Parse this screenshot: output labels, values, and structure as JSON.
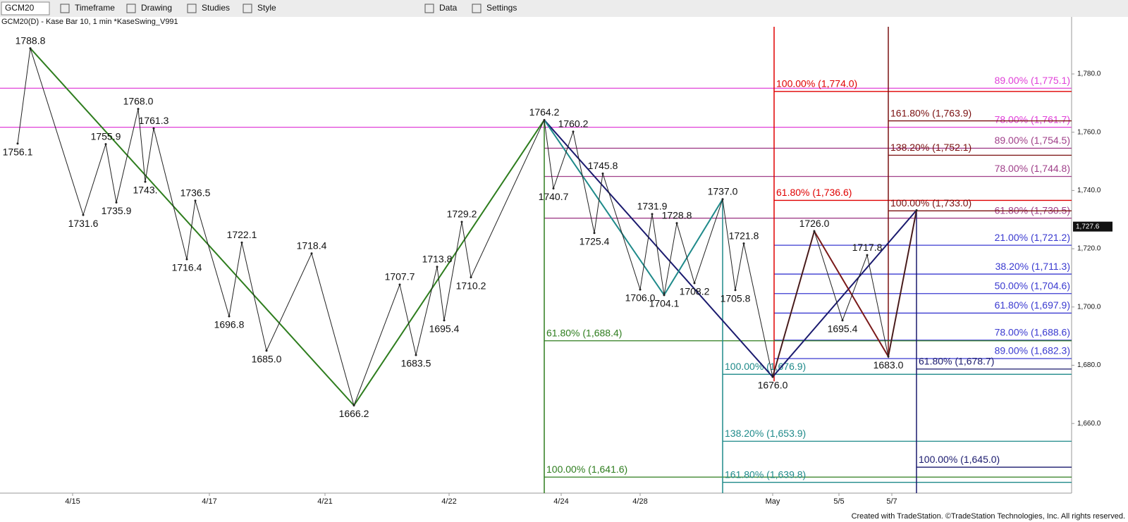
{
  "toolbar": {
    "symbol": "GCM20",
    "items": [
      "Timeframe",
      "Drawing",
      "Studies",
      "Style",
      "Data",
      "Settings"
    ]
  },
  "header": "GCM20(D) - Kase Bar 10, 1 min  *KaseSwing_V991",
  "footer": "Created with TradeStation. ©TradeStation Technologies, Inc. All rights reserved.",
  "chart_data": {
    "type": "line",
    "xlim": [
      0,
      760
    ],
    "ylim": [
      1636.1,
      1796.2
    ],
    "yticks": [
      {
        "value": 1780,
        "label": "1,780.0"
      },
      {
        "value": 1760,
        "label": "1,760.0"
      },
      {
        "value": 1740,
        "label": "1,740.0"
      },
      {
        "value": 1720,
        "label": "1,720.0"
      },
      {
        "value": 1700,
        "label": "1,700.0"
      },
      {
        "value": 1680,
        "label": "1,680.0"
      },
      {
        "value": 1660,
        "label": "1,660.0"
      }
    ],
    "xticks": [
      {
        "value": 51.5,
        "label": "4/15"
      },
      {
        "value": 148.5,
        "label": "4/17"
      },
      {
        "value": 230.5,
        "label": "4/21"
      },
      {
        "value": 318.5,
        "label": "4/22"
      },
      {
        "value": 398,
        "label": "4/24"
      },
      {
        "value": 454,
        "label": "4/28"
      },
      {
        "value": 548,
        "label": "May"
      },
      {
        "value": 595,
        "label": "5/5"
      },
      {
        "value": 632.5,
        "label": "5/7"
      }
    ],
    "last_price": {
      "value": 1727.6,
      "label": "1,727.6"
    },
    "pivots": {
      "color": "#222222",
      "x": [
        12.5,
        21.5,
        59,
        75,
        82.5,
        98,
        103,
        109,
        132.5,
        138.5,
        162.5,
        171.5,
        189,
        221,
        251,
        283.5,
        295,
        310,
        315,
        327.5,
        334,
        386,
        392.5,
        406.5,
        421.5,
        427.5,
        454,
        462.5,
        471,
        480,
        492.5,
        512.5,
        521.5,
        527.5,
        548,
        577.5,
        597.5,
        615,
        630,
        650
      ],
      "values": [
        1756.1,
        1788.8,
        1731.6,
        1755.9,
        1735.9,
        1768.0,
        1743,
        1761.3,
        1716.4,
        1736.5,
        1696.8,
        1722.1,
        1685.0,
        1718.4,
        1666.2,
        1707.7,
        1683.5,
        1713.8,
        1695.4,
        1729.2,
        1710.2,
        1764.2,
        1740.7,
        1760.2,
        1725.4,
        1745.8,
        1706.0,
        1731.9,
        1704.1,
        1728.8,
        1708.2,
        1737.0,
        1705.8,
        1721.8,
        1676.0,
        1726.0,
        1695.4,
        1717.8,
        1683.0,
        1733.2
      ],
      "value_labels": [
        "1756.1",
        "1788.8",
        "1731.6",
        "1755.9",
        "1735.9",
        "1768.0",
        "1743.",
        "1761.3",
        "1716.4",
        "1736.5",
        "1696.8",
        "1722.1",
        "1685.0",
        "1718.4",
        "1666.2",
        "1707.7",
        "1683.5",
        "1713.8",
        "1695.4",
        "1729.2",
        "1710.2",
        "1764.2",
        "1740.7",
        "1760.2",
        "1725.4",
        "1745.8",
        "1706.0",
        "1731.9",
        "1704.1",
        "1728.8",
        "1708.2",
        "1737.0",
        "1705.8",
        "1721.8",
        "1676.0",
        "1726.0",
        "1695.4",
        "1717.8",
        "1683.0",
        null
      ]
    },
    "swings": [
      {
        "color": "#2e7d1e",
        "x": [
          21.5,
          251,
          386
        ],
        "values": [
          1788.8,
          1666.2,
          1764.2
        ]
      },
      {
        "color": "#1a1a6e",
        "x": [
          386,
          548,
          650
        ],
        "values": [
          1764.2,
          1676.0,
          1733.2
        ]
      },
      {
        "color": "#1f8a8a",
        "x": [
          386,
          471,
          512.5
        ],
        "values": [
          1764.2,
          1704.1,
          1737.0
        ]
      },
      {
        "color": "#7a1a1a",
        "x": [
          548,
          577.5,
          630,
          650
        ],
        "values": [
          1676.0,
          1726.0,
          1683.0,
          1733.2
        ]
      }
    ],
    "fib_groups": [
      {
        "color": "#e040d8",
        "x": 0,
        "label_side": "right",
        "levels": [
          {
            "value": 1775.1,
            "label": "89.00% (1,775.1)"
          },
          {
            "value": 1761.7,
            "label": "78.00% (1,761.7)"
          }
        ]
      },
      {
        "color": "#a0408a",
        "x": 386,
        "label_side": "right",
        "levels": [
          {
            "value": 1754.5,
            "label": "89.00% (1,754.5)"
          },
          {
            "value": 1744.8,
            "label": "78.00% (1,744.8)"
          },
          {
            "value": 1730.5,
            "label": "61.80% (1,730.5)"
          }
        ]
      },
      {
        "color": "#3a3ad0",
        "x": 549,
        "label_side": "right",
        "levels": [
          {
            "value": 1721.2,
            "label": "21.00% (1,721.2)"
          },
          {
            "value": 1711.3,
            "label": "38.20% (1,711.3)"
          },
          {
            "value": 1704.6,
            "label": "50.00% (1,704.6)"
          },
          {
            "value": 1697.9,
            "label": "61.80% (1,697.9)"
          },
          {
            "value": 1688.6,
            "label": "78.00% (1,688.6)"
          },
          {
            "value": 1682.3,
            "label": "89.00% (1,682.3)"
          }
        ]
      },
      {
        "color": "#e00000",
        "x": 549,
        "label_side": "left",
        "vspan": [
          1796.2,
          1674.5
        ],
        "levels": [
          {
            "value": 1774.0,
            "label": "100.00% (1,774.0)"
          },
          {
            "value": 1736.6,
            "label": "61.80% (1,736.6)"
          }
        ]
      },
      {
        "color": "#7a1010",
        "x": 630,
        "label_side": "left",
        "vspan": [
          1796.2,
          1683
        ],
        "levels": [
          {
            "value": 1763.9,
            "label": "161.80% (1,763.9)"
          },
          {
            "value": 1752.1,
            "label": "138.20% (1,752.1)"
          },
          {
            "value": 1733.0,
            "label": "100.00% (1,733.0)"
          }
        ]
      },
      {
        "color": "#2e7d1e",
        "x": 386,
        "label_side": "left",
        "vspan": [
          1764.2,
          1636.1
        ],
        "levels": [
          {
            "value": 1688.4,
            "label": "61.80% (1,688.4)"
          },
          {
            "value": 1641.6,
            "label": "100.00% (1,641.6)"
          }
        ]
      },
      {
        "color": "#1f8a8a",
        "x": 512.5,
        "label_side": "left",
        "vspan": [
          1737.0,
          1636.1
        ],
        "levels": [
          {
            "value": 1676.9,
            "label": "100.00% (1,676.9)"
          },
          {
            "value": 1653.9,
            "label": "138.20% (1,653.9)"
          },
          {
            "value": 1639.8,
            "label": "161.80% (1,639.8)"
          }
        ]
      },
      {
        "color": "#1a1a6e",
        "x": 650,
        "label_side": "left",
        "vspan": [
          1733.2,
          1636.1
        ],
        "levels": [
          {
            "value": 1678.7,
            "label": "61.80% (1,678.7)"
          },
          {
            "value": 1645.0,
            "label": "100.00% (1,645.0)"
          }
        ]
      }
    ]
  }
}
